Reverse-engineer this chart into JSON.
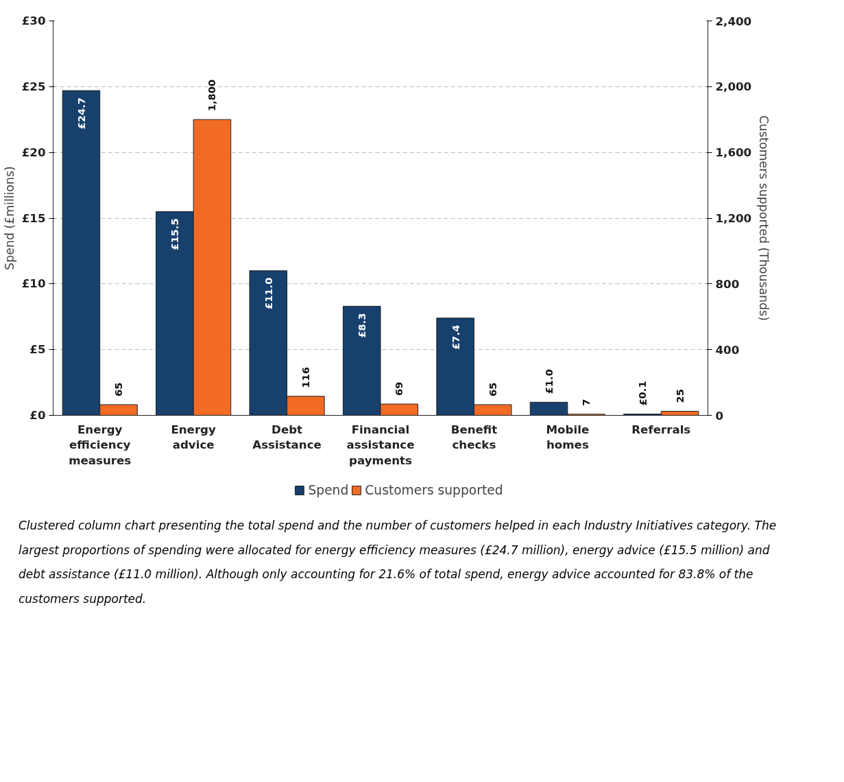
{
  "chart_data": {
    "type": "bar",
    "categories": [
      "Energy\nefficiency\nmeasures",
      "Energy\nadvice",
      "Debt\nAssistance",
      "Financial\nassistance\npayments",
      "Benefit\nchecks",
      "Mobile\nhomes",
      "Referrals"
    ],
    "series": [
      {
        "name": "Spend",
        "color": "#17406d",
        "values": [
          24.7,
          15.5,
          11.0,
          8.3,
          7.4,
          1.0,
          0.1
        ],
        "value_labels": [
          "£24.7",
          "£15.5",
          "£11.0",
          "£8.3",
          "£7.4",
          "£1.0",
          "£0.1"
        ]
      },
      {
        "name": "Customers supported",
        "color": "#f26b25",
        "axis": "y2",
        "values": [
          65,
          1800,
          116,
          69,
          65,
          7,
          25
        ],
        "value_labels": [
          "65",
          "1,800",
          "116",
          "69",
          "65",
          "7",
          "25"
        ]
      }
    ],
    "ylim": [
      0,
      30
    ],
    "yticks": [
      {
        "value": 0,
        "label": "£0"
      },
      {
        "value": 5,
        "label": "£5"
      },
      {
        "value": 10,
        "label": "£10"
      },
      {
        "value": 15,
        "label": "£15"
      },
      {
        "value": 20,
        "label": "£20"
      },
      {
        "value": 25,
        "label": "£25"
      },
      {
        "value": 30,
        "label": "£30"
      }
    ],
    "y2lim": [
      0,
      2400
    ],
    "y2ticks": [
      0,
      400,
      800,
      {
        "value": 1200,
        "label": "1,200"
      },
      {
        "value": 1600,
        "label": "1,600"
      },
      {
        "value": 2000,
        "label": "2,000"
      },
      {
        "value": 2400,
        "label": "2,400"
      }
    ],
    "ylabel": "Spend (£millions)",
    "y2label": "Customers supported (Thousands)",
    "grid": "y",
    "legend": "bottom",
    "annotations": [
      "Clustered column chart presenting the total spend and the number of customers helped in each Industry Initiatives category. The largest proportions of spending were allocated for energy efficiency measures (£24.7 million), energy advice (£15.5 million) and debt assistance (£11.0 million). Although only accounting for 21.6% of total spend, energy advice accounted for 83.8% of the customers supported."
    ]
  }
}
